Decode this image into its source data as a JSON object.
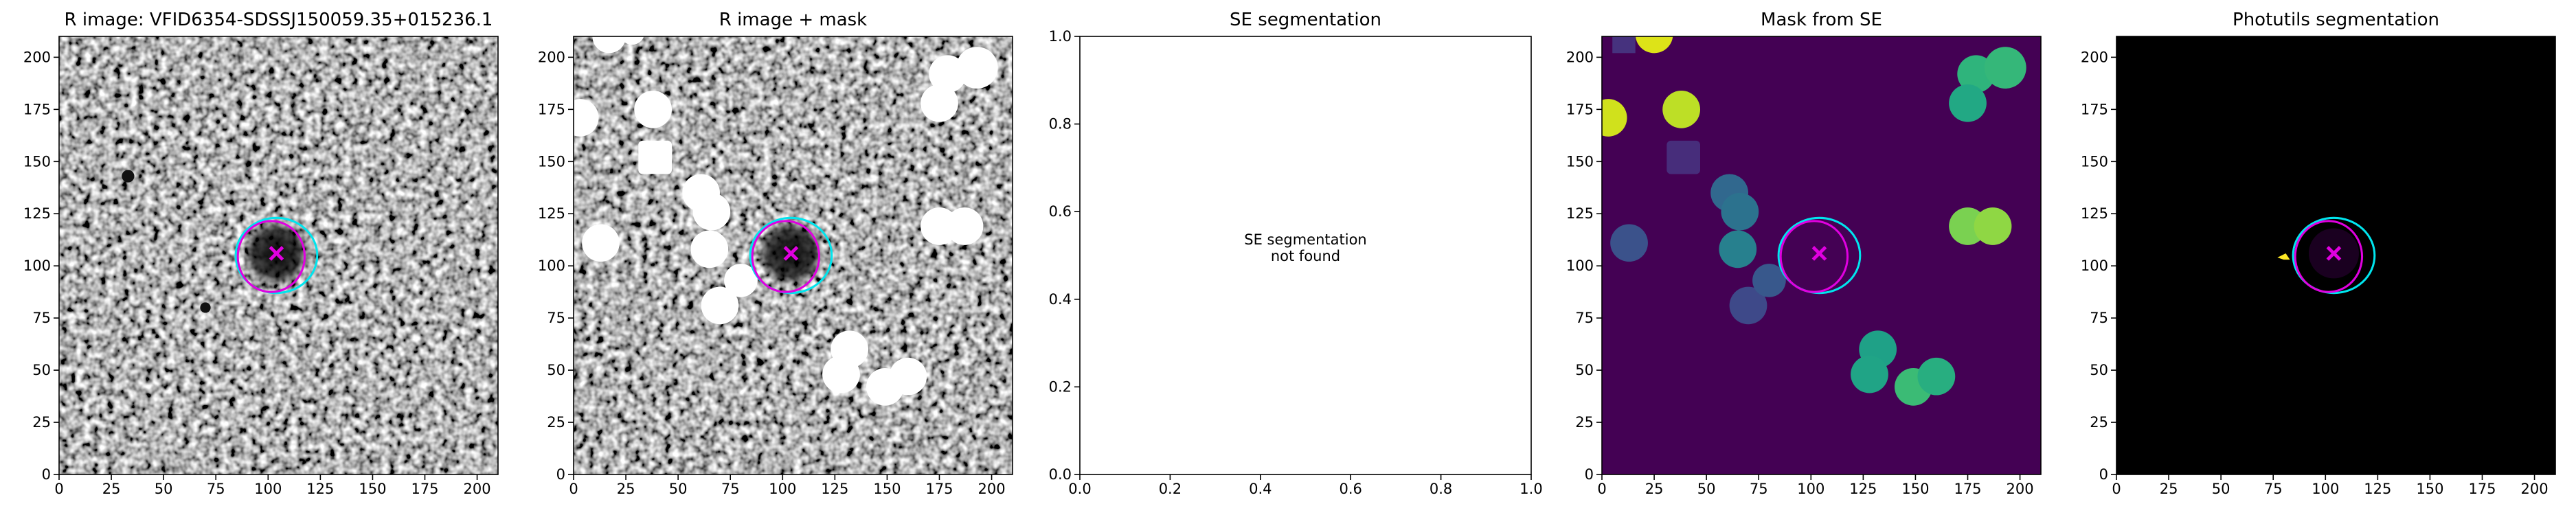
{
  "chart_data": [
    {
      "type": "image",
      "title": "R image: VFID6354-SDSSJ150059.35+015236.1",
      "xlim": [
        0,
        210
      ],
      "ylim": [
        0,
        210
      ],
      "xticks": [
        0,
        25,
        50,
        75,
        100,
        125,
        150,
        175,
        200
      ],
      "yticks": [
        0,
        25,
        50,
        75,
        100,
        125,
        150,
        175,
        200
      ]
    },
    {
      "type": "image",
      "title": "R image + mask",
      "xlim": [
        0,
        210
      ],
      "ylim": [
        0,
        210
      ],
      "xticks": [
        0,
        25,
        50,
        75,
        100,
        125,
        150,
        175,
        200
      ],
      "yticks": [
        0,
        25,
        50,
        75,
        100,
        125,
        150,
        175,
        200
      ]
    },
    {
      "type": "empty",
      "title": "SE segmentation",
      "annotation": [
        "SE segmentation",
        "not found"
      ],
      "xlim": [
        0,
        1
      ],
      "ylim": [
        0,
        1
      ],
      "xticks": [
        {
          "value": 0,
          "label": "0.0"
        },
        0.2,
        0.4,
        0.6,
        0.8,
        {
          "value": 1,
          "label": "1.0"
        }
      ],
      "yticks": [
        {
          "value": 0,
          "label": "0.0"
        },
        0.2,
        0.4,
        0.6,
        0.8,
        {
          "value": 1,
          "label": "1.0"
        }
      ]
    },
    {
      "type": "image",
      "title": "Mask from SE",
      "xlim": [
        0,
        210
      ],
      "ylim": [
        0,
        210
      ],
      "xticks": [
        0,
        25,
        50,
        75,
        100,
        125,
        150,
        175,
        200
      ],
      "yticks": [
        0,
        25,
        50,
        75,
        100,
        125,
        150,
        175,
        200
      ]
    },
    {
      "type": "image",
      "title": "Photutils segmentation",
      "xlim": [
        0,
        210
      ],
      "ylim": [
        0,
        210
      ],
      "xticks": [
        0,
        25,
        50,
        75,
        100,
        125,
        150,
        175,
        200
      ],
      "yticks": [
        0,
        25,
        50,
        75,
        100,
        125,
        150,
        175,
        200
      ]
    }
  ]
}
